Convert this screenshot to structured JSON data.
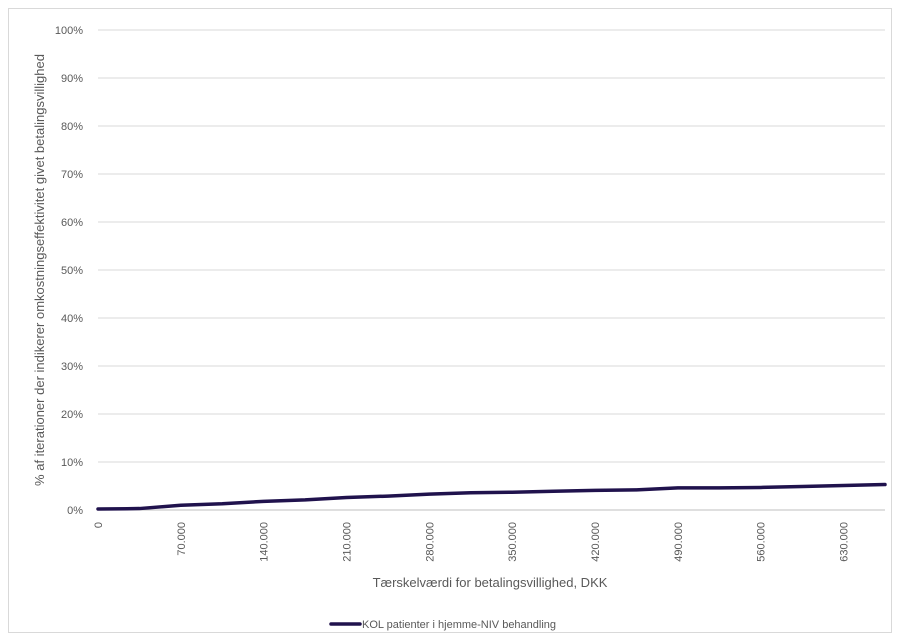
{
  "chart_data": {
    "type": "line",
    "title": "",
    "xlabel": "Tærskelværdi for betalingsvillighed, DKK",
    "ylabel": "% af iterationer der indikerer omkostningseffektivitet givet betalingsvillighed",
    "xlim": [
      0,
      665000
    ],
    "ylim": [
      0,
      1
    ],
    "x_ticks": [
      0,
      70000,
      140000,
      210000,
      280000,
      350000,
      420000,
      490000,
      560000,
      630000
    ],
    "x_tick_labels": [
      "0",
      "70.000",
      "140.000",
      "210.000",
      "280.000",
      "350.000",
      "420.000",
      "490.000",
      "560.000",
      "630.000"
    ],
    "y_ticks": [
      0,
      0.1,
      0.2,
      0.3,
      0.4,
      0.5,
      0.6,
      0.7,
      0.8,
      0.9,
      1
    ],
    "y_tick_labels": [
      "0%",
      "10%",
      "20%",
      "30%",
      "40%",
      "50%",
      "60%",
      "70%",
      "80%",
      "90%",
      "100%"
    ],
    "grid": true,
    "legend_position": "bottom",
    "series": [
      {
        "name": "KOL patienter i hjemme-NIV behandling",
        "color": "#20124d",
        "x": [
          0,
          35000,
          70000,
          105000,
          140000,
          175000,
          210000,
          245000,
          280000,
          315000,
          350000,
          385000,
          420000,
          455000,
          490000,
          525000,
          560000,
          595000,
          630000,
          665000
        ],
        "values": [
          0.002,
          0.003,
          0.01,
          0.013,
          0.018,
          0.021,
          0.026,
          0.029,
          0.033,
          0.036,
          0.037,
          0.039,
          0.041,
          0.042,
          0.046,
          0.046,
          0.047,
          0.049,
          0.051,
          0.053
        ]
      }
    ]
  }
}
